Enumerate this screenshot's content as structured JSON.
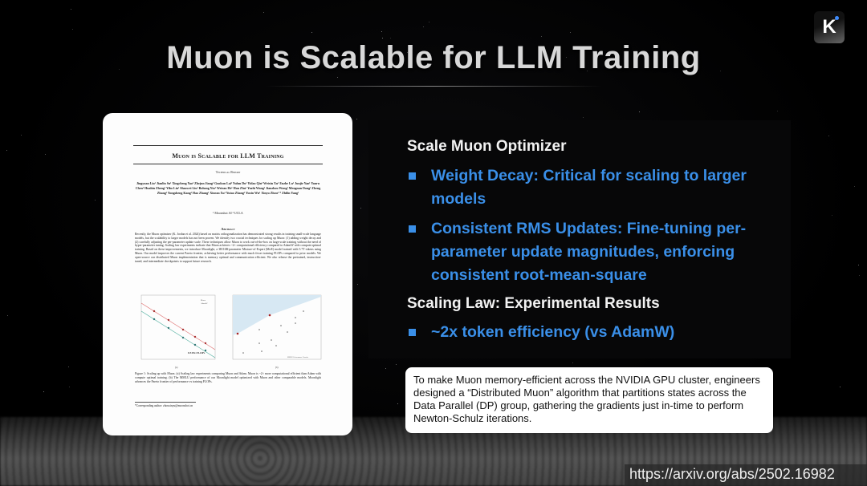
{
  "slide": {
    "title": "Muon is Scalable for LLM Training",
    "logo_letter": "K",
    "url": "https://arxiv.org/abs/2502.16982"
  },
  "paper": {
    "title": "Muon is Scalable for LLM Training",
    "report_type": "Technical Report",
    "authors": "Jingyuan Liu¹ Jianlin Su¹ Xingcheng Yao² Zhejun Jiang¹ Guokun Lai¹ Yulun Du¹ Yidao Qin¹ Weixin Xu¹ Enzhe Lu¹ Junjie Yan¹ Yanru Chen¹ Huabin Zheng¹ Yibo Liu¹ Shaowei Liu¹ Bohong Yin¹ Weiran He¹ Han Zhu¹ Yuzhi Wang¹ Jianzhou Wang¹ Mengnan Dong¹ Zheng Zhang¹ Yongsheng Kang¹ Hao Zhang¹ Xinran Xu¹ Yutao Zhang¹ Yuxin Wu¹ Xinyu Zhou¹ * Zhilin Yang¹",
    "affiliations": "¹ Moonshot AI   ² UCLA",
    "abstract_heading": "Abstract",
    "abstract": "Recently, the Muon optimizer (K. Jordan et al. 2024) based on matrix orthogonalization has demonstrated strong results in training small-scale language models, but the scalability to larger models has not been proven. We identify two crucial techniques for scaling up Muon: (1) adding weight decay and (2) carefully adjusting the per-parameter update scale. These techniques allow Muon to work out-of-the-box on large-scale training without the need of hyper-parameter tuning. Scaling law experiments indicate that Muon achieves ~2× computational efficiency compared to AdamW with compute optimal training. Based on these improvements, we introduce Moonlight, a 3B/16B-parameter Mixture-of-Expert (MoE) model trained with 5.7T tokens using Muon. Our model improves the current Pareto frontier, achieving better performance with much fewer training FLOPs compared to prior models. We open-source our distributed Muon implementation that is memory optimal and communication efficient. We also release the pretrained, instruction-tuned, and intermediate checkpoints to support future research.",
    "fig_a_label": "(a)",
    "fig_b_label": "(b)",
    "fig_a_annotation": "0.519x FLOPs",
    "fig_a_legend": [
      "Muon",
      "AdamW"
    ],
    "fig_b_legend": "MMLU Performance Frontier",
    "caption": "Figure 1: Scaling up with Muon. (a) Scaling law experiments comparing Muon and Adam. Muon is ~2× more computational efficient than Adam with compute optimal training. (b) The MMLU performance of our Moonlight model optimized with Muon and other comparable models. Moonlight advances the Pareto frontier of performance vs training FLOPs.",
    "corresponding": "*Corresponding author: zhouxinyu@moonshot.cn"
  },
  "panel": {
    "heading1": "Scale Muon Optimizer",
    "bullets1": [
      "Weight Decay: Critical for scaling to larger models",
      "Consistent RMS Updates: Fine-tuning per-parameter update magnitudes, enforcing consistent root-mean-square"
    ],
    "heading2": "Scaling Law: Experimental Results",
    "bullets2": [
      "~2x token efficiency (vs AdamW)"
    ],
    "accent_color": "#3a8fe8"
  },
  "note": "To make Muon memory-efficient across the NVIDIA GPU cluster, engineers designed a “Distributed Muon” algorithm that partitions states across the Data Parallel (DP) group, gathering the gradients just in-time to perform Newton-Schulz iterations."
}
